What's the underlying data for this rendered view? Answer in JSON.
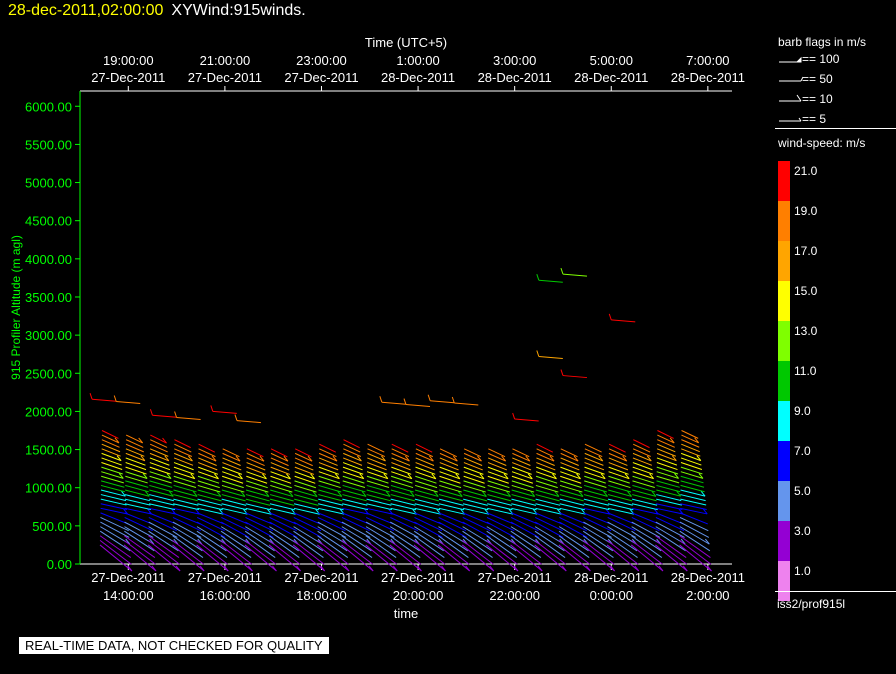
{
  "header": {
    "datetime": "28-dec-2011,02:00:00",
    "title": "XYWind:915winds."
  },
  "chart_data": {
    "type": "scatter",
    "subtype": "wind-barb time-height profile",
    "top_axis": {
      "label": "Time (UTC+5)",
      "ticks": [
        {
          "time": "19:00:00",
          "date": "27-Dec-2011"
        },
        {
          "time": "21:00:00",
          "date": "27-Dec-2011"
        },
        {
          "time": "23:00:00",
          "date": "27-Dec-2011"
        },
        {
          "time": "1:00:00",
          "date": "28-Dec-2011"
        },
        {
          "time": "3:00:00",
          "date": "28-Dec-2011"
        },
        {
          "time": "5:00:00",
          "date": "28-Dec-2011"
        },
        {
          "time": "7:00:00",
          "date": "28-Dec-2011"
        }
      ]
    },
    "x_axis": {
      "label": "time",
      "range": [
        "27-Dec-2011 13:00",
        "28-Dec-2011 02:30"
      ],
      "ticks": [
        {
          "date": "27-Dec-2011",
          "time": "14:00:00"
        },
        {
          "date": "27-Dec-2011",
          "time": "16:00:00"
        },
        {
          "date": "27-Dec-2011",
          "time": "18:00:00"
        },
        {
          "date": "27-Dec-2011",
          "time": "20:00:00"
        },
        {
          "date": "27-Dec-2011",
          "time": "22:00:00"
        },
        {
          "date": "28-Dec-2011",
          "time": "0:00:00"
        },
        {
          "date": "28-Dec-2011",
          "time": "2:00:00"
        }
      ]
    },
    "y_axis": {
      "label": "915 Profiler Altitude (m agl)",
      "range": [
        0,
        6200
      ],
      "ticks": [
        "0.00",
        "500.00",
        "1000.00",
        "1500.00",
        "2000.00",
        "2500.00",
        "3000.00",
        "3500.00",
        "4000.00",
        "4500.00",
        "5000.00",
        "5500.00",
        "6000.00"
      ]
    },
    "profiles": {
      "start": "27-Dec-2011 13:30",
      "interval_minutes": 30,
      "count": 25,
      "profile_top_m": [
        1780,
        1730,
        1700,
        1640,
        1580,
        1560,
        1540,
        1520,
        1520,
        1600,
        1630,
        1620,
        1600,
        1580,
        1560,
        1560,
        1560,
        1560,
        1570,
        1560,
        1620,
        1600,
        1640,
        1760,
        1800
      ],
      "note": "barbs plotted every ~60 m from ~250 m agl up to profile top; colored by wind speed"
    },
    "isolated_barbs": [
      {
        "x": "27-Dec-2011 13:15",
        "alt_m": 2160,
        "speed": 20.5
      },
      {
        "x": "27-Dec-2011 13:45",
        "alt_m": 2130,
        "speed": 18.5
      },
      {
        "x": "27-Dec-2011 14:30",
        "alt_m": 1950,
        "speed": 20.0
      },
      {
        "x": "27-Dec-2011 15:00",
        "alt_m": 1920,
        "speed": 18.5
      },
      {
        "x": "27-Dec-2011 15:45",
        "alt_m": 2000,
        "speed": 20.5
      },
      {
        "x": "27-Dec-2011 16:15",
        "alt_m": 1880,
        "speed": 18.5
      },
      {
        "x": "27-Dec-2011 19:15",
        "alt_m": 2120,
        "speed": 18.5
      },
      {
        "x": "27-Dec-2011 19:45",
        "alt_m": 2090,
        "speed": 18.0
      },
      {
        "x": "27-Dec-2011 20:15",
        "alt_m": 2140,
        "speed": 18.5
      },
      {
        "x": "27-Dec-2011 20:45",
        "alt_m": 2110,
        "speed": 18.0
      },
      {
        "x": "27-Dec-2011 22:30",
        "alt_m": 3720,
        "speed": 11.5
      },
      {
        "x": "27-Dec-2011 23:00",
        "alt_m": 3800,
        "speed": 12.0
      },
      {
        "x": "27-Dec-2011 22:00",
        "alt_m": 1900,
        "speed": 21.0
      },
      {
        "x": "27-Dec-2011 22:30",
        "alt_m": 2720,
        "speed": 16.0
      },
      {
        "x": "27-Dec-2011 23:00",
        "alt_m": 2470,
        "speed": 21.0
      },
      {
        "x": "28-Dec-2011 00:00",
        "alt_m": 3200,
        "speed": 21.0
      }
    ],
    "legend": {
      "barb_title": "barb flags in m/s",
      "barb_flags": [
        "== 100",
        "== 50",
        "== 10",
        "== 5"
      ],
      "speed_title": "wind-speed: m/s",
      "speed_bins": [
        {
          "label": "21.0",
          "color": "#ff0000"
        },
        {
          "label": "19.0",
          "color": "#ff7f00"
        },
        {
          "label": "17.0",
          "color": "#ffa500"
        },
        {
          "label": "15.0",
          "color": "#ffff00"
        },
        {
          "label": "13.0",
          "color": "#7fff00"
        },
        {
          "label": "11.0",
          "color": "#00c800"
        },
        {
          "label": "9.0",
          "color": "#00ffff"
        },
        {
          "label": "7.0",
          "color": "#0000ff"
        },
        {
          "label": "5.0",
          "color": "#6495ed"
        },
        {
          "label": "3.0",
          "color": "#9400d3"
        },
        {
          "label": "1.0",
          "color": "#ee82ee"
        }
      ]
    }
  },
  "colors": {
    "altitude_axis": "#00ff00",
    "header_date": "#ffff00"
  },
  "footer": {
    "source": "iss2/prof915l",
    "disclaimer": "REAL-TIME DATA, NOT CHECKED FOR QUALITY"
  }
}
